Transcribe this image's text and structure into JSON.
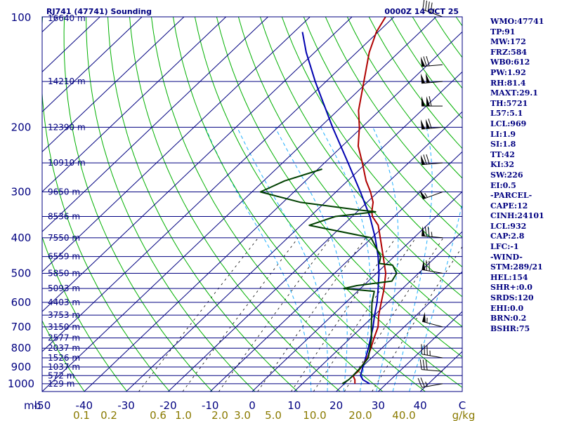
{
  "chart_data": {
    "type": "skew-t",
    "title_left": "RJ741 (47741) Sounding",
    "title_right": "0000Z 14 OCT 25",
    "pressure_tick_labels": [
      "100",
      "200",
      "300",
      "400",
      "500",
      "600",
      "700",
      "800",
      "900",
      "1000"
    ],
    "pressure_ticks_hpa": [
      100,
      200,
      300,
      400,
      500,
      600,
      700,
      800,
      900,
      1000
    ],
    "pressure_range_hpa": [
      100,
      1050
    ],
    "temperature_range_c_at_base": [
      -50,
      50
    ],
    "x_unit_label": "mb",
    "temperature_tick_labels": [
      "-50",
      "-40",
      "-30",
      "-20",
      "-10",
      "0",
      "10",
      "20",
      "30",
      "40",
      "C"
    ],
    "mixing_ratio_tick_labels": [
      "0.1",
      "0.2",
      "0.6",
      "1.0",
      "2.0",
      "3.0",
      "5.0",
      "10.0",
      "20.0",
      "40.0",
      "g/kg"
    ],
    "height_levels": [
      {
        "label": "16640 m",
        "p": 100
      },
      {
        "label": "14210 m",
        "p": 150
      },
      {
        "label": "12390 m",
        "p": 200
      },
      {
        "label": "10910 m",
        "p": 250
      },
      {
        "label": "9650 m",
        "p": 300
      },
      {
        "label": "8536 m",
        "p": 350
      },
      {
        "label": "7550 m",
        "p": 400
      },
      {
        "label": "6559 m",
        "p": 450
      },
      {
        "label": "5850 m",
        "p": 500
      },
      {
        "label": "5093 m",
        "p": 550
      },
      {
        "label": "4403 m",
        "p": 600
      },
      {
        "label": "3753 m",
        "p": 650
      },
      {
        "label": "3150 m",
        "p": 700
      },
      {
        "label": "2577 m",
        "p": 750
      },
      {
        "label": "2037 m",
        "p": 800
      },
      {
        "label": "1526 m",
        "p": 850
      },
      {
        "label": "1037 m",
        "p": 900
      },
      {
        "label": "572 m",
        "p": 950
      },
      {
        "label": "129 m",
        "p": 1000
      }
    ],
    "isotherms_c": [
      -140,
      -130,
      -120,
      -110,
      -100,
      -90,
      -80,
      -70,
      -60,
      -50,
      -40,
      -30,
      -20,
      -10,
      0,
      10,
      20,
      30,
      40,
      50
    ],
    "dry_adiabats_theta_k": [
      230,
      240,
      250,
      260,
      270,
      280,
      290,
      300,
      310,
      320,
      330,
      340,
      350,
      360,
      370,
      380,
      390,
      400,
      410,
      420,
      430,
      440,
      450,
      460,
      470,
      480,
      490,
      500,
      510,
      520,
      530,
      540
    ],
    "moist_adiabats_thetaw_c": [
      12,
      16,
      20,
      24,
      28,
      32,
      36
    ],
    "mixing_ratio_lines_gkg": [
      0.4,
      1,
      2,
      4,
      7,
      10,
      16,
      24
    ],
    "temperature_series": {
      "name": "Temperature",
      "color": "#b00000",
      "points": [
        [
          1000,
          22.5
        ],
        [
          975,
          21.5
        ],
        [
          950,
          20.0
        ],
        [
          925,
          20.2
        ],
        [
          900,
          19.8
        ],
        [
          850,
          19.0
        ],
        [
          800,
          17.4
        ],
        [
          750,
          15.6
        ],
        [
          700,
          13.8
        ],
        [
          650,
          11.0
        ],
        [
          600,
          8.4
        ],
        [
          560,
          6.2
        ],
        [
          550,
          5.6
        ],
        [
          500,
          2.2
        ],
        [
          450,
          -2.6
        ],
        [
          400,
          -8.0
        ],
        [
          370,
          -11.6
        ],
        [
          350,
          -15.2
        ],
        [
          340,
          -16.5
        ],
        [
          320,
          -18.6
        ],
        [
          300,
          -21.8
        ],
        [
          280,
          -25.6
        ],
        [
          250,
          -31.0
        ],
        [
          225,
          -36.2
        ],
        [
          200,
          -40.6
        ],
        [
          180,
          -45.0
        ],
        [
          150,
          -51.0
        ],
        [
          125,
          -57.0
        ],
        [
          110,
          -60.4
        ],
        [
          100,
          -62.0
        ]
      ]
    },
    "dewpoint_series": {
      "name": "Dewpoint",
      "color": "#004000",
      "points": [
        [
          1000,
          19.5
        ],
        [
          975,
          20.0
        ],
        [
          950,
          20.0
        ],
        [
          900,
          19.8
        ],
        [
          850,
          19.2
        ],
        [
          800,
          17.2
        ],
        [
          750,
          15.0
        ],
        [
          700,
          12.2
        ],
        [
          600,
          6.2
        ],
        [
          560,
          4.0
        ],
        [
          550,
          -4.0
        ],
        [
          540,
          -1.6
        ],
        [
          525,
          5.6
        ],
        [
          500,
          4.8
        ],
        [
          475,
          1.8
        ],
        [
          470,
          -1.8
        ],
        [
          450,
          -3.2
        ],
        [
          400,
          -10.2
        ],
        [
          370,
          -28.0
        ],
        [
          350,
          -24.0
        ],
        [
          340,
          -15.6
        ],
        [
          335,
          -21.0
        ],
        [
          320,
          -36.0
        ],
        [
          300,
          -48.0
        ],
        [
          280,
          -45.0
        ],
        [
          260,
          -39.0
        ]
      ]
    },
    "parcel_series": {
      "name": "Parcel path",
      "color": "#0000b0",
      "points": [
        [
          1000,
          26.0
        ],
        [
          975,
          23.4
        ],
        [
          950,
          21.8
        ],
        [
          900,
          20.2
        ],
        [
          850,
          18.6
        ],
        [
          800,
          16.8
        ],
        [
          750,
          14.8
        ],
        [
          700,
          12.6
        ],
        [
          650,
          10.0
        ],
        [
          600,
          7.4
        ],
        [
          550,
          4.2
        ],
        [
          500,
          0.6
        ],
        [
          450,
          -3.8
        ],
        [
          400,
          -9.2
        ],
        [
          350,
          -15.8
        ],
        [
          300,
          -24.2
        ],
        [
          250,
          -34.4
        ],
        [
          200,
          -47.0
        ],
        [
          150,
          -62.6
        ],
        [
          125,
          -72.0
        ],
        [
          110,
          -78.0
        ]
      ]
    },
    "wind_barbs": [
      {
        "p": 1000,
        "dir": 260,
        "kt": 25
      },
      {
        "p": 925,
        "dir": 275,
        "kt": 30
      },
      {
        "p": 850,
        "dir": 280,
        "kt": 35
      },
      {
        "p": 700,
        "dir": 285,
        "kt": 55
      },
      {
        "p": 500,
        "dir": 280,
        "kt": 70
      },
      {
        "p": 400,
        "dir": 275,
        "kt": 75
      },
      {
        "p": 300,
        "dir": 250,
        "kt": 55
      },
      {
        "p": 250,
        "dir": 265,
        "kt": 70
      },
      {
        "p": 200,
        "dir": 265,
        "kt": 110
      },
      {
        "p": 175,
        "dir": 270,
        "kt": 110
      },
      {
        "p": 150,
        "dir": 265,
        "kt": 100
      },
      {
        "p": 135,
        "dir": 265,
        "kt": 70
      },
      {
        "p": 100,
        "dir": 290,
        "kt": 45
      }
    ],
    "indices": [
      "WMO:47741",
      "TP:91",
      "MW:172",
      "FRZ:584",
      "WB0:612",
      "PW:1.92",
      "RH:81.4",
      "MAXT:29.1",
      "TH:5721",
      "L57:5.1",
      "LCL:969",
      "LI:1.9",
      "SI:1.8",
      "TT:42",
      "KI:32",
      "SW:226",
      "EI:0.5",
      "-PARCEL-",
      "CAPE:12",
      "CINH:24101",
      "LCL:932",
      "CAP:2.8",
      "LFC:-1",
      "-WIND-",
      "STM:289/21",
      "HEL:154",
      "SHR+:0.0",
      "SRDS:120",
      "EHI:0.0",
      "BRN:0.2",
      "BSHR:75"
    ],
    "colors": {
      "frame": "#000080",
      "isotherm": "#000080",
      "dry_adiabat": "#00b000",
      "moist_adiabat": "#20b0ff",
      "mixing_ratio": "#000000",
      "mixing_label": "#8a7a00",
      "text": "#000080"
    }
  }
}
